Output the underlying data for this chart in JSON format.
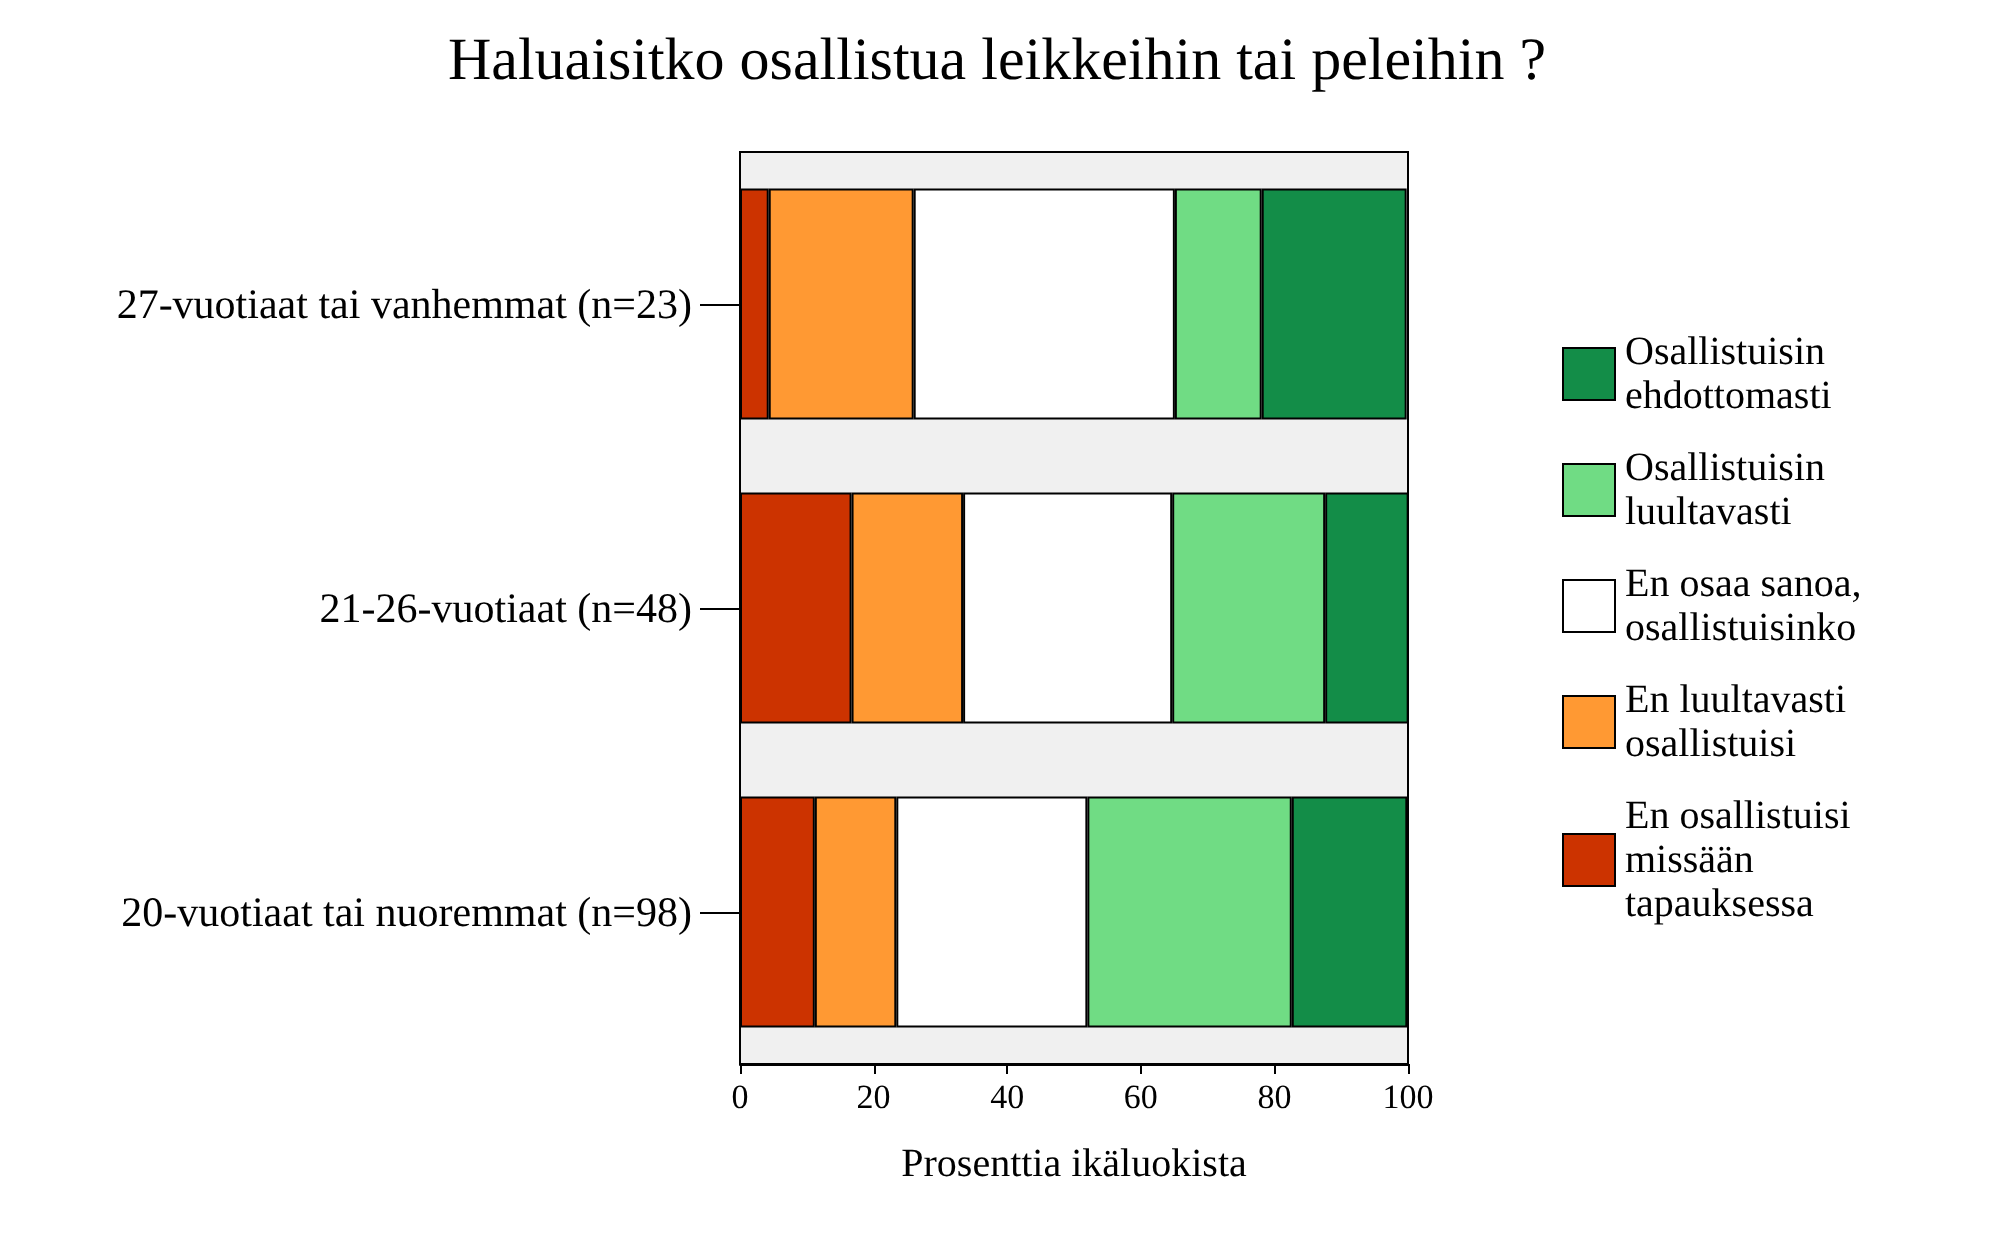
{
  "chart_data": {
    "type": "bar",
    "title": "Haluaisitko osallistua leikkeihin tai peleihin ?",
    "xlabel": "Prosenttia ikäluokista",
    "orientation": "horizontal",
    "stacked": true,
    "categories": [
      "27-vuotiaat tai vanhemmat (n=23)",
      "21-26-vuotiaat (n=48)",
      "20-vuotiaat tai nuoremmat (n=98)"
    ],
    "series": [
      {
        "name": "En osallistuisi missään tapauksessa",
        "color": "#cc3300",
        "values": [
          4.3,
          16.7,
          11.2
        ]
      },
      {
        "name": "En luultavasti osallistuisi",
        "color": "#ff9933",
        "values": [
          21.7,
          16.7,
          12.2
        ]
      },
      {
        "name": "En osaa sanoa, osallistuisinko",
        "color": "#ffffff",
        "values": [
          39.1,
          31.3,
          28.6
        ]
      },
      {
        "name": "Osallistuisin luultavasti",
        "color": "#70dc84",
        "values": [
          13.0,
          22.9,
          30.6
        ]
      },
      {
        "name": "Osallistuisin ehdottomasti",
        "color": "#138d48",
        "values": [
          21.7,
          12.5,
          17.3
        ]
      }
    ],
    "xlim": [
      0,
      100
    ],
    "xticks": [
      0,
      20,
      40,
      60,
      80,
      100
    ],
    "grid": false,
    "legend": "right"
  }
}
